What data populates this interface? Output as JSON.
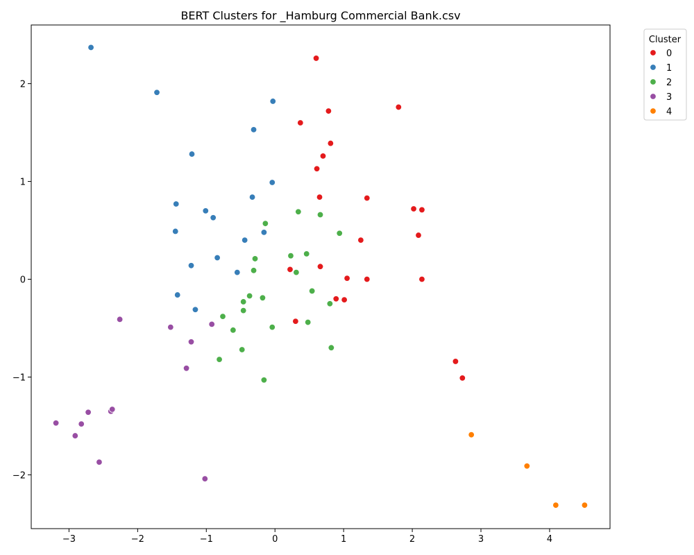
{
  "chart_data": {
    "type": "scatter",
    "title": "BERT Clusters for _Hamburg Commercial Bank.csv",
    "xlabel": "",
    "ylabel": "",
    "xlim": [
      -3.55,
      4.88
    ],
    "ylim": [
      -2.55,
      2.6
    ],
    "x_ticks": [
      -3,
      -2,
      -1,
      0,
      1,
      2,
      3,
      4
    ],
    "y_ticks": [
      -2,
      -1,
      0,
      1,
      2
    ],
    "x_tick_labels": [
      "−3",
      "−2",
      "−1",
      "0",
      "1",
      "2",
      "3",
      "4"
    ],
    "y_tick_labels": [
      "−2",
      "−1",
      "0",
      "1",
      "2"
    ],
    "grid": false,
    "legend": {
      "title": "Cluster",
      "placement": "outside-top-right"
    },
    "series": [
      {
        "name": "0",
        "color": "#e41a1c",
        "points": [
          [
            0.6,
            2.26
          ],
          [
            1.8,
            1.76
          ],
          [
            0.78,
            1.72
          ],
          [
            0.37,
            1.6
          ],
          [
            0.81,
            1.39
          ],
          [
            0.7,
            1.26
          ],
          [
            0.61,
            1.13
          ],
          [
            0.65,
            0.84
          ],
          [
            1.34,
            0.83
          ],
          [
            2.02,
            0.72
          ],
          [
            2.14,
            0.71
          ],
          [
            2.09,
            0.45
          ],
          [
            1.25,
            0.4
          ],
          [
            0.22,
            0.1
          ],
          [
            0.66,
            0.13
          ],
          [
            1.05,
            0.01
          ],
          [
            1.34,
            0.0
          ],
          [
            2.14,
            0.0
          ],
          [
            0.89,
            -0.2
          ],
          [
            1.01,
            -0.21
          ],
          [
            0.3,
            -0.43
          ],
          [
            2.63,
            -0.84
          ],
          [
            2.73,
            -1.01
          ]
        ]
      },
      {
        "name": "1",
        "color": "#377eb8",
        "points": [
          [
            -2.68,
            2.37
          ],
          [
            -1.72,
            1.91
          ],
          [
            -0.03,
            1.82
          ],
          [
            -0.31,
            1.53
          ],
          [
            -1.21,
            1.28
          ],
          [
            -0.04,
            0.99
          ],
          [
            -0.33,
            0.84
          ],
          [
            -1.44,
            0.77
          ],
          [
            -1.01,
            0.7
          ],
          [
            -0.9,
            0.63
          ],
          [
            -1.45,
            0.49
          ],
          [
            -0.16,
            0.48
          ],
          [
            -0.44,
            0.4
          ],
          [
            -0.84,
            0.22
          ],
          [
            -1.22,
            0.14
          ],
          [
            -0.55,
            0.07
          ],
          [
            -1.42,
            -0.16
          ],
          [
            -1.16,
            -0.31
          ]
        ]
      },
      {
        "name": "2",
        "color": "#4daf4a",
        "points": [
          [
            0.34,
            0.69
          ],
          [
            -0.14,
            0.57
          ],
          [
            0.66,
            0.66
          ],
          [
            0.94,
            0.47
          ],
          [
            -0.29,
            0.21
          ],
          [
            0.23,
            0.24
          ],
          [
            0.46,
            0.26
          ],
          [
            -0.31,
            0.09
          ],
          [
            0.31,
            0.07
          ],
          [
            0.54,
            -0.12
          ],
          [
            -0.37,
            -0.17
          ],
          [
            -0.18,
            -0.19
          ],
          [
            -0.46,
            -0.23
          ],
          [
            0.8,
            -0.25
          ],
          [
            -0.46,
            -0.32
          ],
          [
            -0.76,
            -0.38
          ],
          [
            -0.04,
            -0.49
          ],
          [
            0.48,
            -0.44
          ],
          [
            -0.61,
            -0.52
          ],
          [
            0.82,
            -0.7
          ],
          [
            -0.48,
            -0.72
          ],
          [
            -0.81,
            -0.82
          ],
          [
            -0.16,
            -1.03
          ]
        ]
      },
      {
        "name": "3",
        "color": "#984ea3",
        "points": [
          [
            -2.26,
            -0.41
          ],
          [
            -1.52,
            -0.49
          ],
          [
            -0.92,
            -0.46
          ],
          [
            -1.22,
            -0.64
          ],
          [
            -1.29,
            -0.91
          ],
          [
            -2.39,
            -1.35
          ],
          [
            -2.37,
            -1.33
          ],
          [
            -2.72,
            -1.36
          ],
          [
            -3.19,
            -1.47
          ],
          [
            -2.82,
            -1.48
          ],
          [
            -2.91,
            -1.6
          ],
          [
            -2.56,
            -1.87
          ],
          [
            -1.02,
            -2.04
          ]
        ]
      },
      {
        "name": "4",
        "color": "#ff7f00",
        "points": [
          [
            2.86,
            -1.59
          ],
          [
            3.67,
            -1.91
          ],
          [
            4.09,
            -2.31
          ],
          [
            4.51,
            -2.31
          ]
        ]
      }
    ]
  }
}
